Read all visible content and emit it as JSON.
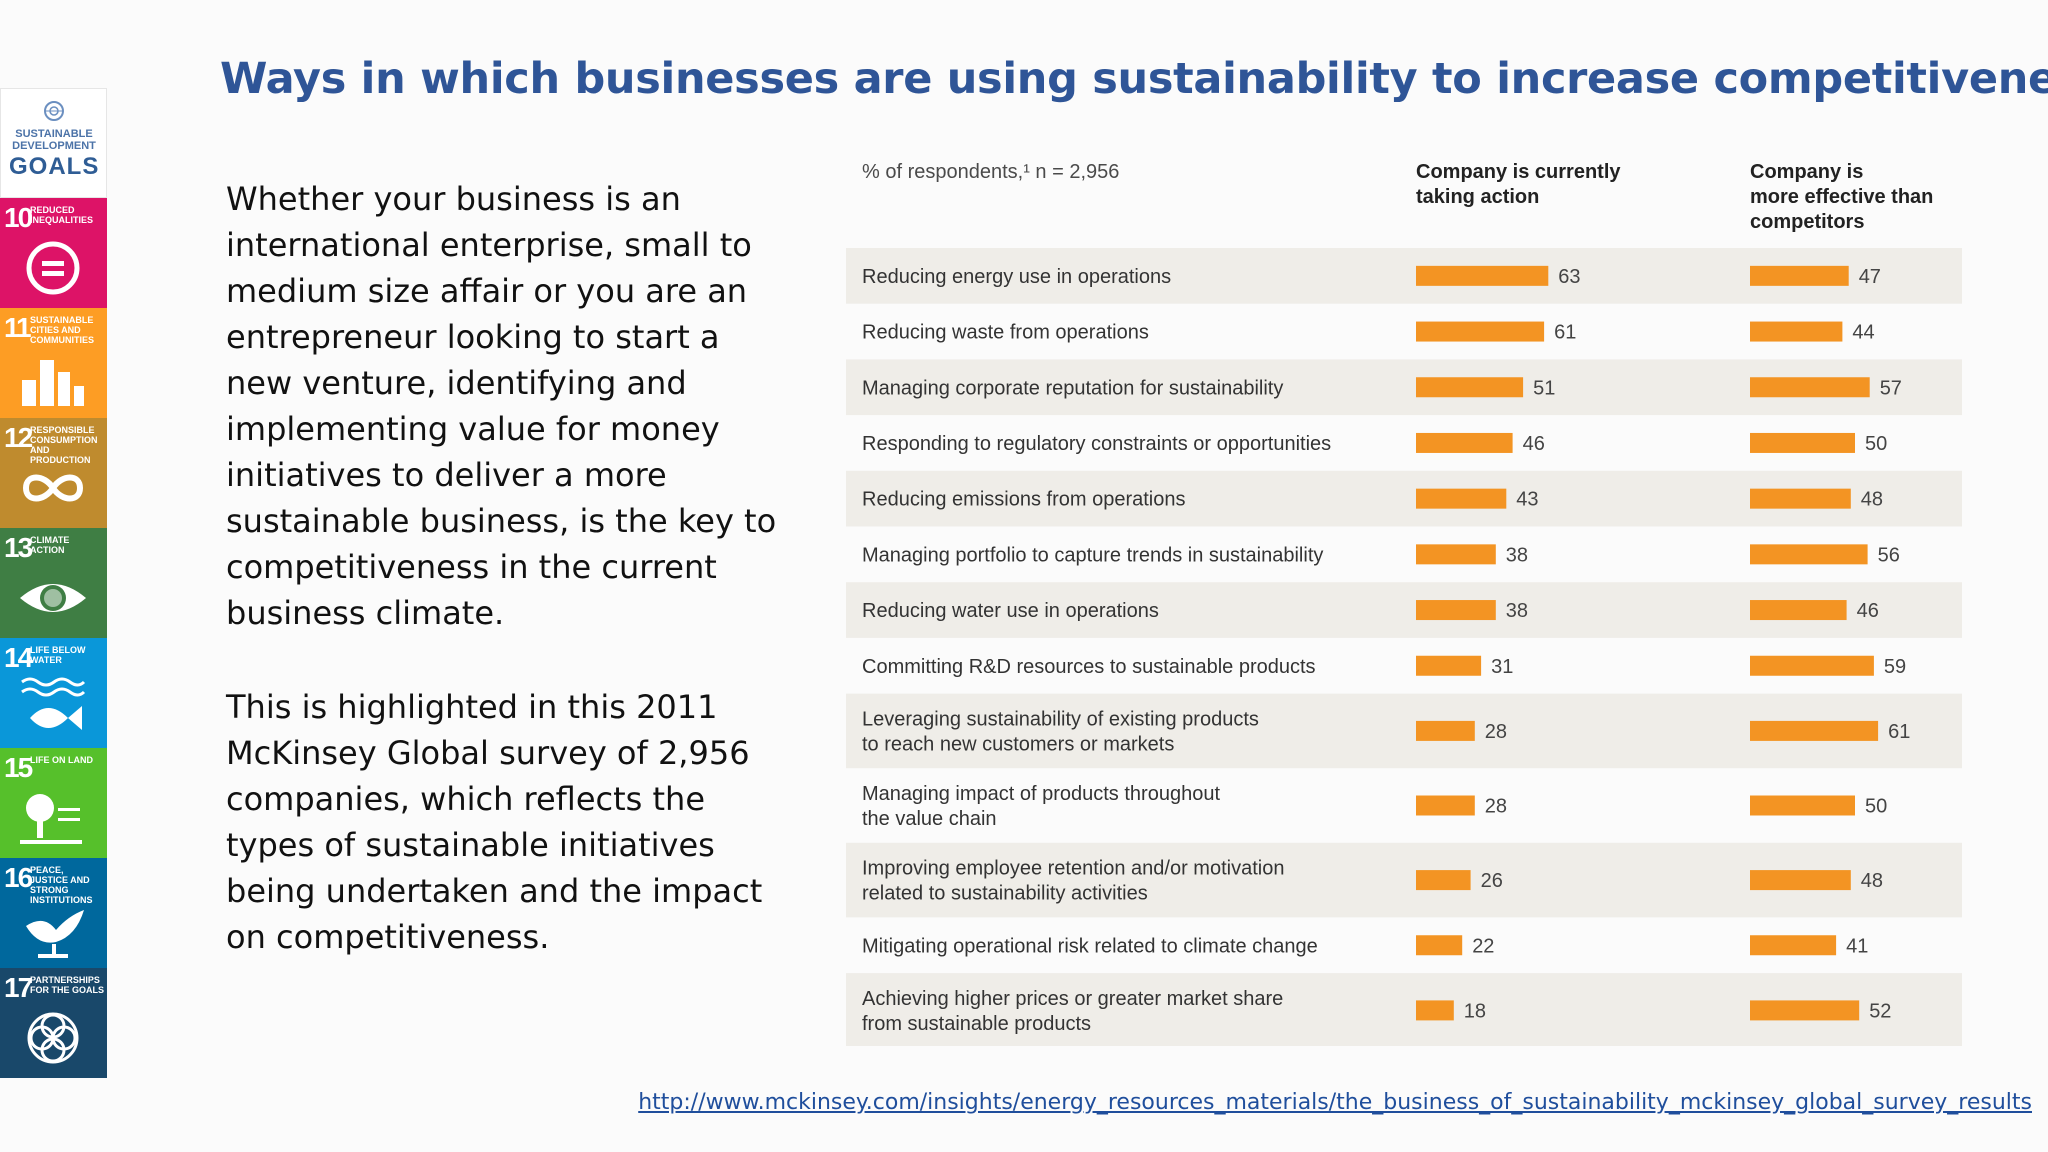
{
  "slide": {
    "title": "Ways in which businesses are using sustainability to increase competitiveness",
    "paragraphs": [
      "Whether your business is an international enterprise, small to medium size affair or you are an entrepreneur looking to start a new venture, identifying and implementing value for money initiatives to deliver a more sustainable business, is the key to competitiveness in the current business climate.",
      "This is highlighted in this 2011 McKinsey Global survey of 2,956 companies, which reflects the types of sustainable initiatives being undertaken and the impact on competitiveness."
    ],
    "source_url": "http://www.mckinsey.com/insights/energy_resources_materials/the_business_of_sustainability_mckinsey_global_survey_results"
  },
  "sdg_strip": {
    "logo": {
      "line1": "SUSTAINABLE",
      "line2": "DEVELOPMENT",
      "line3": "GOALS"
    },
    "goals": [
      {
        "num": "10",
        "title": "Reduced inequalities",
        "color": "#dd1367",
        "icon": "equality-icon"
      },
      {
        "num": "11",
        "title": "Sustainable cities and communities",
        "color": "#fd9d24",
        "icon": "city-icon"
      },
      {
        "num": "12",
        "title": "Responsible consumption and production",
        "color": "#bf8b2e",
        "icon": "infinity-icon"
      },
      {
        "num": "13",
        "title": "Climate action",
        "color": "#3f7e44",
        "icon": "earth-eye-icon"
      },
      {
        "num": "14",
        "title": "Life below water",
        "color": "#0a97d9",
        "icon": "fish-icon"
      },
      {
        "num": "15",
        "title": "Life on land",
        "color": "#56c02b",
        "icon": "tree-icon"
      },
      {
        "num": "16",
        "title": "Peace, justice and strong institutions",
        "color": "#00689d",
        "icon": "dove-icon"
      },
      {
        "num": "17",
        "title": "Partnerships for the goals",
        "color": "#19486a",
        "icon": "flower-icon"
      }
    ]
  },
  "chart_data": {
    "type": "bar",
    "header_left": "% of respondents,¹ n = 2,956",
    "series_headers": [
      [
        "Company is currently",
        "taking action"
      ],
      [
        "Company is",
        "more effective than",
        "competitors"
      ]
    ],
    "categories": [
      [
        "Reducing energy use in operations"
      ],
      [
        "Reducing waste from operations"
      ],
      [
        "Managing corporate reputation for sustainability"
      ],
      [
        "Responding to regulatory constraints or opportunities"
      ],
      [
        "Reducing emissions from operations"
      ],
      [
        "Managing portfolio to capture trends in sustainability"
      ],
      [
        "Reducing water use in operations"
      ],
      [
        "Committing R&D resources to sustainable products"
      ],
      [
        "Leveraging sustainability of existing products",
        "to reach new customers or markets"
      ],
      [
        "Managing impact of products throughout",
        "the value chain"
      ],
      [
        "Improving employee retention and/or motivation",
        "related to sustainability activities"
      ],
      [
        "Mitigating operational risk related to climate change"
      ],
      [
        "Achieving higher prices or greater market share",
        "from sustainable products"
      ]
    ],
    "series": [
      {
        "values": [
          63,
          61,
          51,
          46,
          43,
          38,
          38,
          31,
          28,
          28,
          26,
          22,
          18
        ]
      },
      {
        "values": [
          47,
          44,
          57,
          50,
          48,
          56,
          46,
          59,
          61,
          50,
          48,
          41,
          52
        ]
      }
    ],
    "bar_color": "#f39423",
    "stripe_color": "#efede8",
    "legend": "none",
    "grid": false
  }
}
